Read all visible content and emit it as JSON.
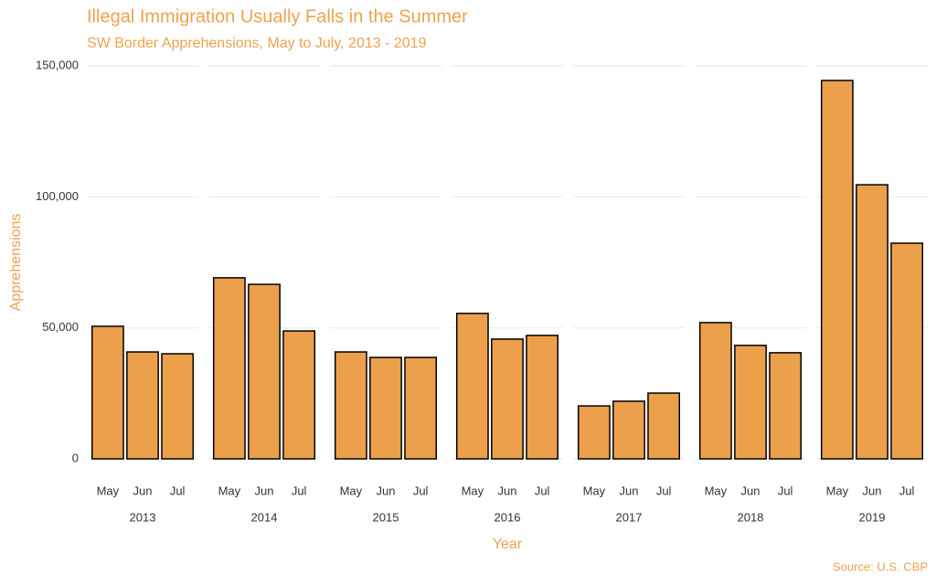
{
  "chart_data": {
    "type": "bar",
    "title": "Illegal Immigration Usually Falls in the Summer",
    "subtitle": "SW Border Apprehensions, May to July, 2013 - 2019",
    "x_label": "Year",
    "y_label": "Apprehensions",
    "caption": "Source: U.S. CBP",
    "color": "#eca04b",
    "outline": "#000000",
    "grid": true,
    "ylim": [
      0,
      150000
    ],
    "yticks": [
      0,
      {
        "value": 50000,
        "label": "50,000"
      },
      {
        "value": 100000,
        "label": "100,000"
      },
      {
        "value": 150000,
        "label": "150,000"
      }
    ],
    "panels": [
      {
        "label": "2013",
        "categories": [
          "May",
          "Jun",
          "Jul"
        ],
        "values": [
          50600,
          40800,
          40100
        ]
      },
      {
        "label": "2014",
        "categories": [
          "May",
          "Jun",
          "Jul"
        ],
        "values": [
          69100,
          66600,
          48800
        ]
      },
      {
        "label": "2015",
        "categories": [
          "May",
          "Jun",
          "Jul"
        ],
        "values": [
          40800,
          38700,
          38700
        ]
      },
      {
        "label": "2016",
        "categories": [
          "May",
          "Jun",
          "Jul"
        ],
        "values": [
          55500,
          45700,
          47100
        ]
      },
      {
        "label": "2017",
        "categories": [
          "May",
          "Jun",
          "Jul"
        ],
        "values": [
          20200,
          22000,
          25100
        ]
      },
      {
        "label": "2018",
        "categories": [
          "May",
          "Jun",
          "Jul"
        ],
        "values": [
          52000,
          43300,
          40500
        ]
      },
      {
        "label": "2019",
        "categories": [
          "May",
          "Jun",
          "Jul"
        ],
        "values": [
          144400,
          104600,
          82300
        ]
      }
    ]
  }
}
